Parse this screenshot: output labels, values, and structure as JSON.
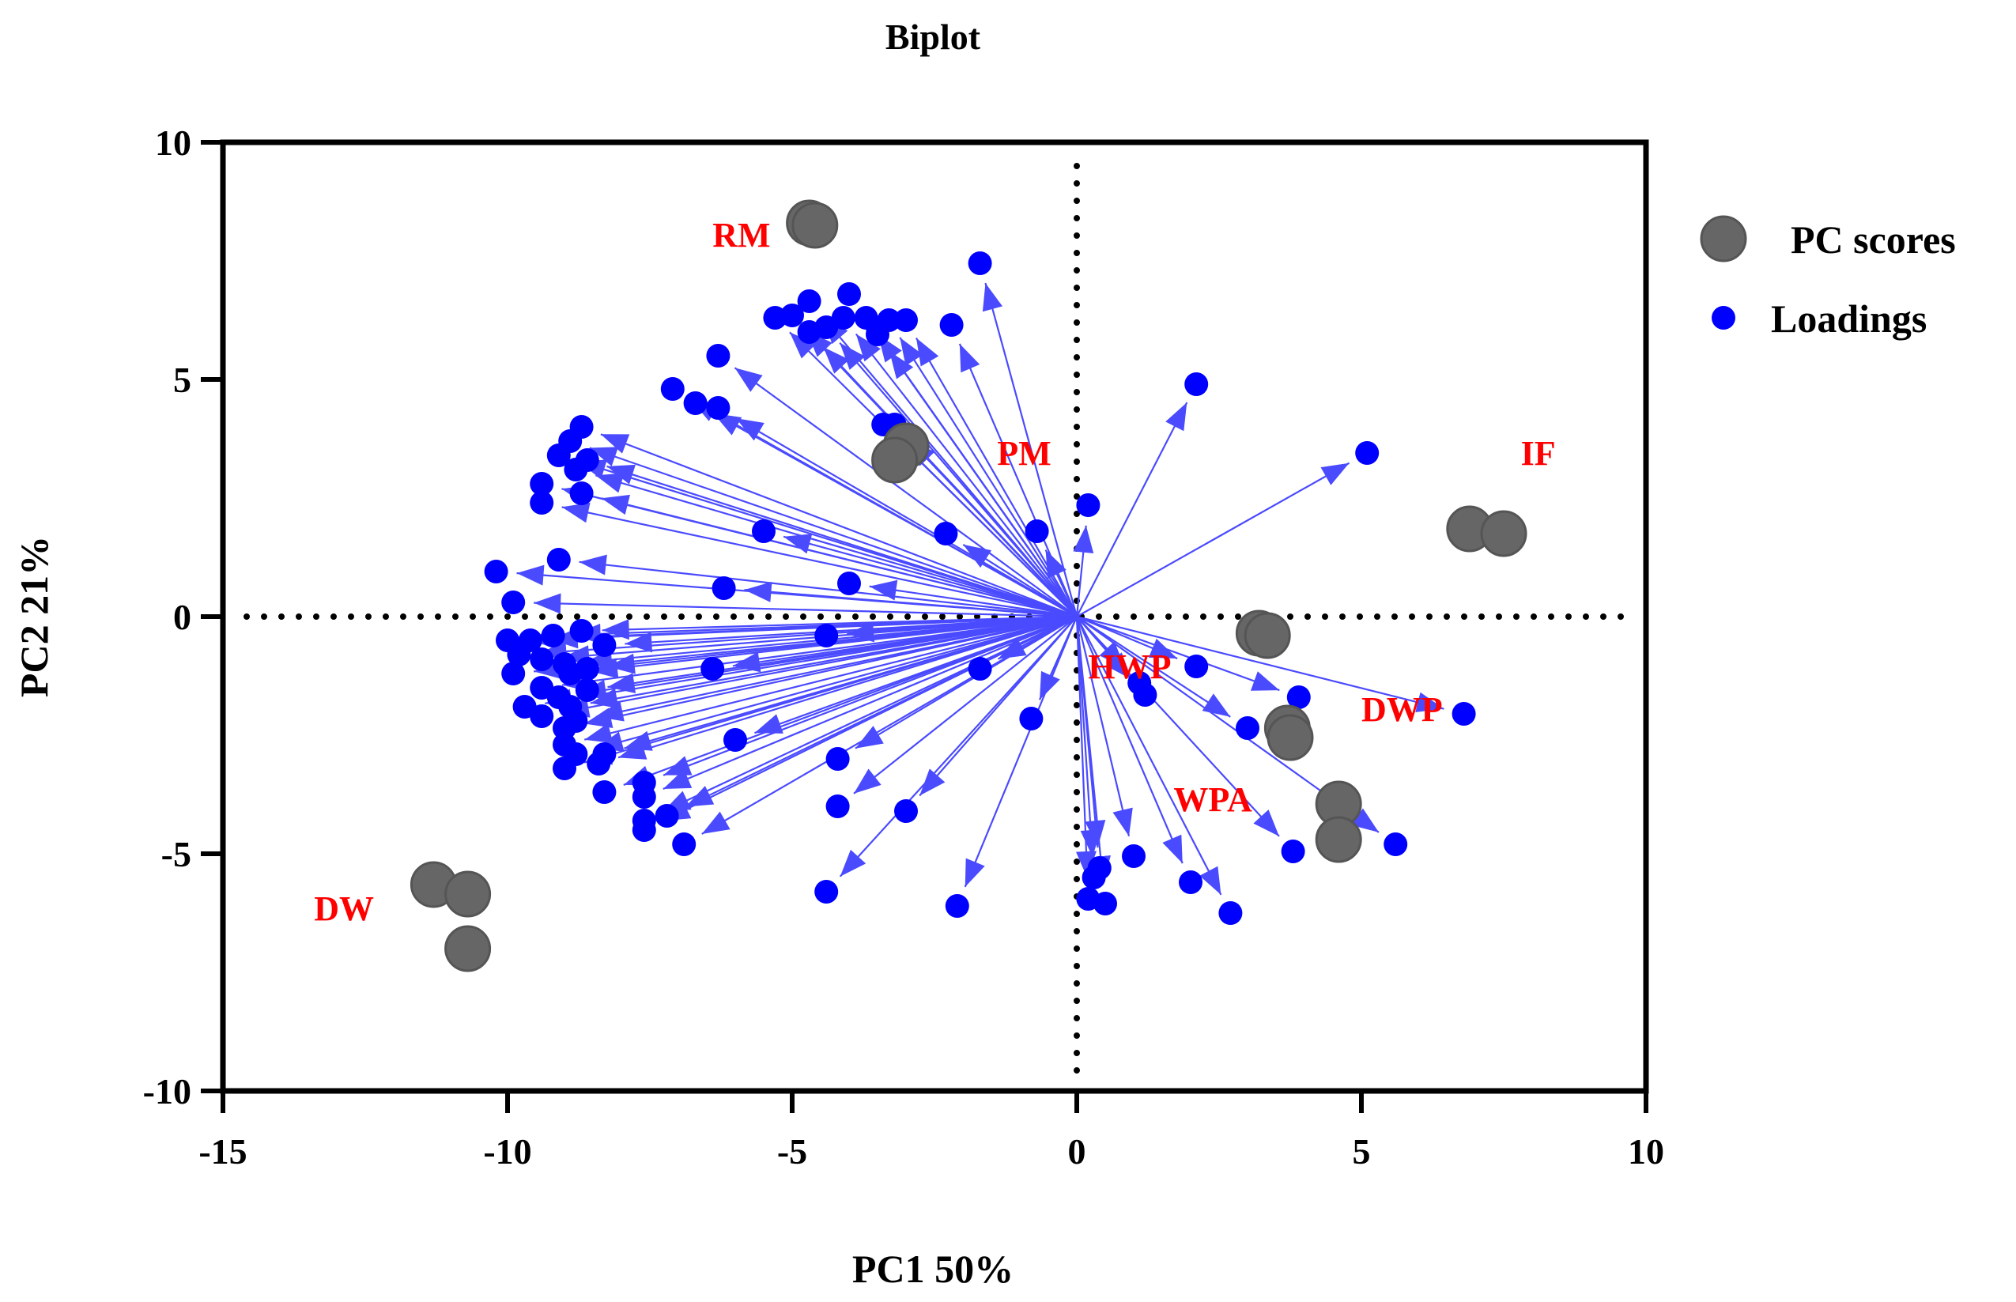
{
  "chart_data": {
    "type": "scatter",
    "title": "Biplot",
    "xlabel": "PC1 50%",
    "ylabel": "PC2 21%",
    "xlim": [
      -15,
      10
    ],
    "ylim": [
      -10,
      10
    ],
    "xticks": [
      -15,
      -10,
      -5,
      0,
      5,
      10
    ],
    "yticks": [
      -10,
      -5,
      0,
      5,
      10
    ],
    "xtick_labels": [
      "-15",
      "-10",
      "-5",
      "0",
      "5",
      "10"
    ],
    "ytick_labels": [
      "-10",
      "-5",
      "0",
      "5",
      "10"
    ],
    "reference_lines": {
      "x": 0,
      "y": 0,
      "style": "dotted"
    },
    "legend": {
      "position": "top-right",
      "entries": [
        {
          "label": "PC scores",
          "color": "#666666"
        },
        {
          "label": "Loadings",
          "color": "#0000ff"
        }
      ]
    },
    "colors": {
      "scores": "#666666",
      "loadings": "#0000ff",
      "arrows": "#4a4aff",
      "group_labels": "#ff0000",
      "frame": "#000000"
    },
    "series": [
      {
        "name": "PC scores",
        "points": [
          {
            "x": -4.7,
            "y": 8.3
          },
          {
            "x": -4.6,
            "y": 8.25
          },
          {
            "x": -3.0,
            "y": 3.6
          },
          {
            "x": -3.2,
            "y": 3.3
          },
          {
            "x": 6.9,
            "y": 1.85
          },
          {
            "x": 7.5,
            "y": 1.75
          },
          {
            "x": 3.2,
            "y": -0.35
          },
          {
            "x": 3.35,
            "y": -0.4
          },
          {
            "x": 3.7,
            "y": -2.35
          },
          {
            "x": 3.75,
            "y": -2.55
          },
          {
            "x": 4.6,
            "y": -3.95
          },
          {
            "x": 4.6,
            "y": -4.7
          },
          {
            "x": -11.3,
            "y": -5.65
          },
          {
            "x": -10.7,
            "y": -5.85
          },
          {
            "x": -10.7,
            "y": -7.0
          }
        ]
      },
      {
        "name": "Loadings",
        "points": [
          {
            "x": -1.7,
            "y": 7.45
          },
          {
            "x": -4.0,
            "y": 6.8
          },
          {
            "x": -4.7,
            "y": 6.65
          },
          {
            "x": -5.0,
            "y": 6.35
          },
          {
            "x": -5.3,
            "y": 6.3
          },
          {
            "x": -4.1,
            "y": 6.3
          },
          {
            "x": -3.7,
            "y": 6.3
          },
          {
            "x": -3.3,
            "y": 6.25
          },
          {
            "x": -3.0,
            "y": 6.25
          },
          {
            "x": -4.4,
            "y": 6.1
          },
          {
            "x": -4.7,
            "y": 6.0
          },
          {
            "x": -3.5,
            "y": 5.95
          },
          {
            "x": -2.2,
            "y": 6.15
          },
          {
            "x": -6.3,
            "y": 5.5
          },
          {
            "x": -7.1,
            "y": 4.8
          },
          {
            "x": -6.7,
            "y": 4.5
          },
          {
            "x": -6.3,
            "y": 4.4
          },
          {
            "x": -3.4,
            "y": 4.05
          },
          {
            "x": -3.2,
            "y": 4.05
          },
          {
            "x": 2.1,
            "y": 4.9
          },
          {
            "x": 5.1,
            "y": 3.45
          },
          {
            "x": -8.7,
            "y": 4.0
          },
          {
            "x": -8.9,
            "y": 3.7
          },
          {
            "x": -9.1,
            "y": 3.4
          },
          {
            "x": -8.6,
            "y": 3.3
          },
          {
            "x": -8.8,
            "y": 3.1
          },
          {
            "x": -9.4,
            "y": 2.8
          },
          {
            "x": -8.7,
            "y": 2.6
          },
          {
            "x": -9.4,
            "y": 2.4
          },
          {
            "x": 0.2,
            "y": 2.35
          },
          {
            "x": -5.5,
            "y": 1.8
          },
          {
            "x": -2.3,
            "y": 1.75
          },
          {
            "x": -0.7,
            "y": 1.8
          },
          {
            "x": -9.1,
            "y": 1.2
          },
          {
            "x": -10.2,
            "y": 0.95
          },
          {
            "x": -6.2,
            "y": 0.6
          },
          {
            "x": -4.0,
            "y": 0.7
          },
          {
            "x": -9.9,
            "y": 0.3
          },
          {
            "x": -10.0,
            "y": -0.5
          },
          {
            "x": -9.6,
            "y": -0.5
          },
          {
            "x": -9.2,
            "y": -0.4
          },
          {
            "x": -8.7,
            "y": -0.3
          },
          {
            "x": -8.3,
            "y": -0.6
          },
          {
            "x": -4.4,
            "y": -0.4
          },
          {
            "x": -9.8,
            "y": -0.8
          },
          {
            "x": -9.4,
            "y": -0.9
          },
          {
            "x": -9.0,
            "y": -1.0
          },
          {
            "x": -8.6,
            "y": -1.1
          },
          {
            "x": -8.9,
            "y": -1.2
          },
          {
            "x": -9.9,
            "y": -1.2
          },
          {
            "x": -6.4,
            "y": -1.1
          },
          {
            "x": -1.7,
            "y": -1.1
          },
          {
            "x": 2.1,
            "y": -1.05
          },
          {
            "x": -9.4,
            "y": -1.5
          },
          {
            "x": -8.6,
            "y": -1.55
          },
          {
            "x": -9.1,
            "y": -1.7
          },
          {
            "x": -9.7,
            "y": -1.9
          },
          {
            "x": -8.9,
            "y": -1.9
          },
          {
            "x": -9.4,
            "y": -2.1
          },
          {
            "x": -8.8,
            "y": -2.2
          },
          {
            "x": -9.0,
            "y": -2.35
          },
          {
            "x": 1.1,
            "y": -1.4
          },
          {
            "x": 1.2,
            "y": -1.65
          },
          {
            "x": 3.9,
            "y": -1.7
          },
          {
            "x": 6.8,
            "y": -2.05
          },
          {
            "x": -0.8,
            "y": -2.15
          },
          {
            "x": 3.0,
            "y": -2.35
          },
          {
            "x": -9.0,
            "y": -2.7
          },
          {
            "x": -6.0,
            "y": -2.6
          },
          {
            "x": -8.8,
            "y": -2.9
          },
          {
            "x": -8.3,
            "y": -2.9
          },
          {
            "x": -8.4,
            "y": -3.1
          },
          {
            "x": -9.0,
            "y": -3.2
          },
          {
            "x": -7.6,
            "y": -3.5
          },
          {
            "x": -8.3,
            "y": -3.7
          },
          {
            "x": -7.6,
            "y": -3.8
          },
          {
            "x": -4.2,
            "y": -3.0
          },
          {
            "x": -7.2,
            "y": -4.2
          },
          {
            "x": -7.6,
            "y": -4.3
          },
          {
            "x": -7.6,
            "y": -4.5
          },
          {
            "x": -4.2,
            "y": -4.0
          },
          {
            "x": -3.0,
            "y": -4.1
          },
          {
            "x": -6.9,
            "y": -4.8
          },
          {
            "x": 1.0,
            "y": -5.05
          },
          {
            "x": 3.8,
            "y": -4.95
          },
          {
            "x": 5.6,
            "y": -4.8
          },
          {
            "x": 0.4,
            "y": -5.3
          },
          {
            "x": 0.3,
            "y": -5.5
          },
          {
            "x": 2.0,
            "y": -5.6
          },
          {
            "x": -4.4,
            "y": -5.8
          },
          {
            "x": 0.2,
            "y": -5.95
          },
          {
            "x": 0.5,
            "y": -6.05
          },
          {
            "x": -2.1,
            "y": -6.1
          },
          {
            "x": 2.7,
            "y": -6.25
          }
        ]
      }
    ],
    "group_labels": [
      {
        "text": "RM",
        "x": -6.4,
        "y": 7.8
      },
      {
        "text": "PM",
        "x": -1.4,
        "y": 3.2
      },
      {
        "text": "IF",
        "x": 7.8,
        "y": 3.2
      },
      {
        "text": "HWP",
        "x": 0.2,
        "y": -1.3
      },
      {
        "text": "DWP",
        "x": 5.0,
        "y": -2.2
      },
      {
        "text": "WPA",
        "x": 1.7,
        "y": -4.1
      },
      {
        "text": "DW",
        "x": -13.4,
        "y": -6.4
      }
    ]
  }
}
